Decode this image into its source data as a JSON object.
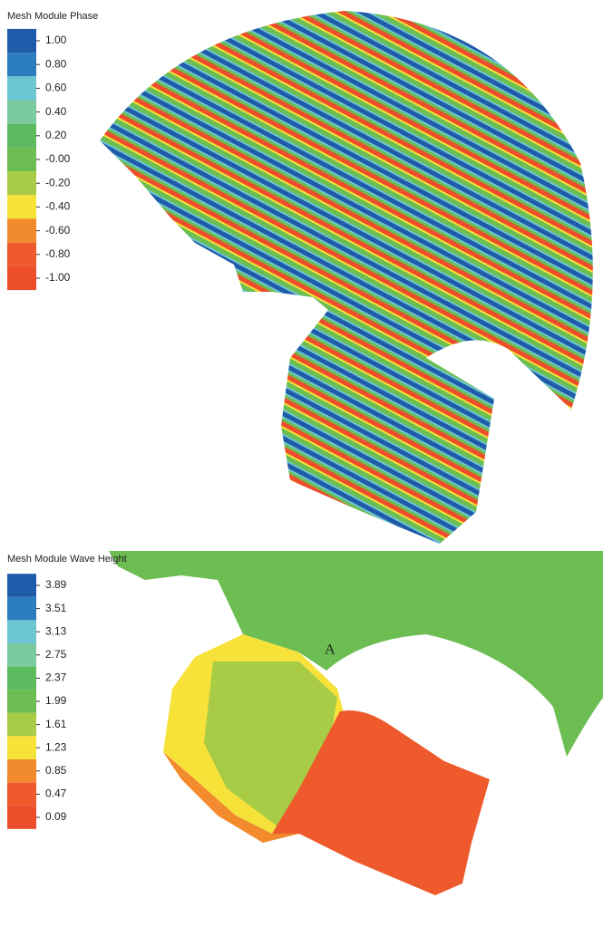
{
  "panels": [
    {
      "legend": {
        "title": "Mesh Module Phase",
        "items": [
          {
            "label": "1.00",
            "color": "#1f5ba8"
          },
          {
            "label": "0.80",
            "color": "#2c7cc0"
          },
          {
            "label": "0.60",
            "color": "#6cc5d3"
          },
          {
            "label": "0.40",
            "color": "#7ccaa0"
          },
          {
            "label": "0.20",
            "color": "#5cba5f"
          },
          {
            "label": "-0.00",
            "color": "#6cbd52"
          },
          {
            "label": "-0.20",
            "color": "#a8cc45"
          },
          {
            "label": "-0.40",
            "color": "#f7e23a"
          },
          {
            "label": "-0.60",
            "color": "#f28a2e"
          },
          {
            "label": "-0.80",
            "color": "#ee5a2b"
          },
          {
            "label": "-1.00",
            "color": "#ec4d2a"
          }
        ]
      }
    },
    {
      "legend": {
        "title": "Mesh Module Wave Height",
        "items": [
          {
            "label": "3.89",
            "color": "#1f5ba8"
          },
          {
            "label": "3.51",
            "color": "#2c7cc0"
          },
          {
            "label": "3.13",
            "color": "#6cc5d3"
          },
          {
            "label": "2.75",
            "color": "#7ccaa0"
          },
          {
            "label": "2.37",
            "color": "#5cba5f"
          },
          {
            "label": "1.99",
            "color": "#6cbd52"
          },
          {
            "label": "1.61",
            "color": "#a8cc45"
          },
          {
            "label": "1.23",
            "color": "#f7e23a"
          },
          {
            "label": "0.85",
            "color": "#f28a2e"
          },
          {
            "label": "0.47",
            "color": "#ee5a2b"
          },
          {
            "label": "0.09",
            "color": "#ec4d2a"
          }
        ]
      },
      "annotation": "A"
    }
  ]
}
